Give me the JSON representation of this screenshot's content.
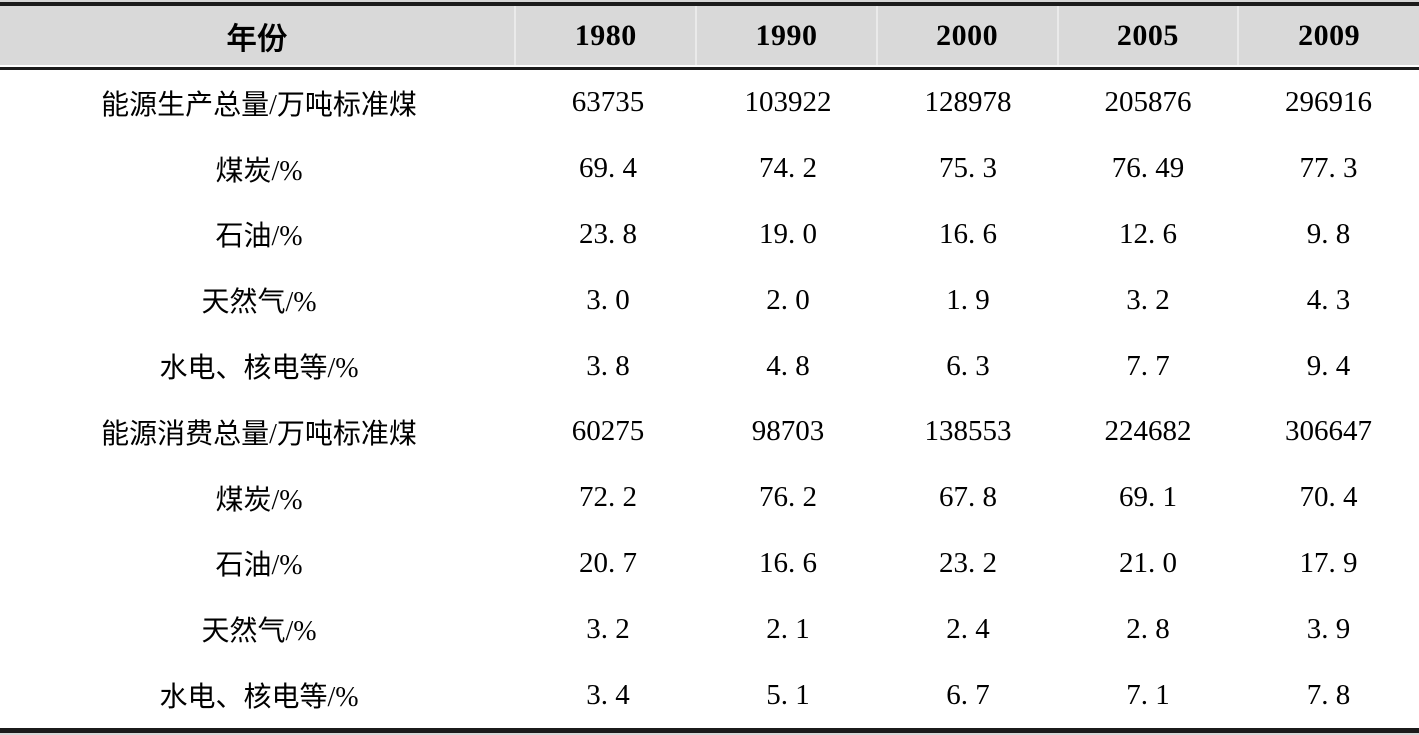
{
  "table": {
    "header": {
      "label": "年份",
      "years": [
        "1980",
        "1990",
        "2000",
        "2005",
        "2009"
      ]
    },
    "rows": [
      {
        "label": "能源生产总量/万吨标准煤",
        "values": [
          "63735",
          "103922",
          "128978",
          "205876",
          "296916"
        ]
      },
      {
        "label": "煤炭/%",
        "values": [
          "69. 4",
          "74. 2",
          "75. 3",
          "76. 49",
          "77. 3"
        ]
      },
      {
        "label": "石油/%",
        "values": [
          "23. 8",
          "19. 0",
          "16. 6",
          "12. 6",
          "9. 8"
        ]
      },
      {
        "label": "天然气/%",
        "values": [
          "3. 0",
          "2. 0",
          "1. 9",
          "3. 2",
          "4. 3"
        ]
      },
      {
        "label": "水电、核电等/%",
        "values": [
          "3. 8",
          "4. 8",
          "6. 3",
          "7. 7",
          "9. 4"
        ]
      },
      {
        "label": "能源消费总量/万吨标准煤",
        "values": [
          "60275",
          "98703",
          "138553",
          "224682",
          "306647"
        ]
      },
      {
        "label": "煤炭/%",
        "values": [
          "72. 2",
          "76. 2",
          "67. 8",
          "69. 1",
          "70. 4"
        ]
      },
      {
        "label": "石油/%",
        "values": [
          "20. 7",
          "16. 6",
          "23. 2",
          "21. 0",
          "17. 9"
        ]
      },
      {
        "label": "天然气/%",
        "values": [
          "3. 2",
          "2. 1",
          "2. 4",
          "2. 8",
          "3. 9"
        ]
      },
      {
        "label": "水电、核电等/%",
        "values": [
          "3. 4",
          "5. 1",
          "6. 7",
          "7. 1",
          "7. 8"
        ]
      }
    ]
  },
  "colors": {
    "header_bg": "#d9d9d9",
    "rule": "#1b1b1b",
    "text": "#000000",
    "header_separator": "#eaeaea"
  },
  "chart_data": {
    "type": "table",
    "columns": [
      "年份",
      "1980",
      "1990",
      "2000",
      "2005",
      "2009"
    ],
    "rows": [
      {
        "label": "能源生产总量/万吨标准煤",
        "values": [
          63735,
          103922,
          128978,
          205876,
          296916
        ]
      },
      {
        "label": "煤炭/%",
        "values": [
          69.4,
          74.2,
          75.3,
          76.49,
          77.3
        ]
      },
      {
        "label": "石油/%",
        "values": [
          23.8,
          19.0,
          16.6,
          12.6,
          9.8
        ]
      },
      {
        "label": "天然气/%",
        "values": [
          3.0,
          2.0,
          1.9,
          3.2,
          4.3
        ]
      },
      {
        "label": "水电、核电等/%",
        "values": [
          3.8,
          4.8,
          6.3,
          7.7,
          9.4
        ]
      },
      {
        "label": "能源消费总量/万吨标准煤",
        "values": [
          60275,
          98703,
          138553,
          224682,
          306647
        ]
      },
      {
        "label": "煤炭/%",
        "values": [
          72.2,
          76.2,
          67.8,
          69.1,
          70.4
        ]
      },
      {
        "label": "石油/%",
        "values": [
          20.7,
          16.6,
          23.2,
          21.0,
          17.9
        ]
      },
      {
        "label": "天然气/%",
        "values": [
          3.2,
          2.1,
          2.4,
          2.8,
          3.9
        ]
      },
      {
        "label": "水电、核电等/%",
        "values": [
          3.4,
          5.1,
          6.7,
          7.1,
          7.8
        ]
      }
    ],
    "layout": {
      "header_row_shaded": true,
      "grid": "off",
      "top_and_bottom_rules": true
    }
  }
}
